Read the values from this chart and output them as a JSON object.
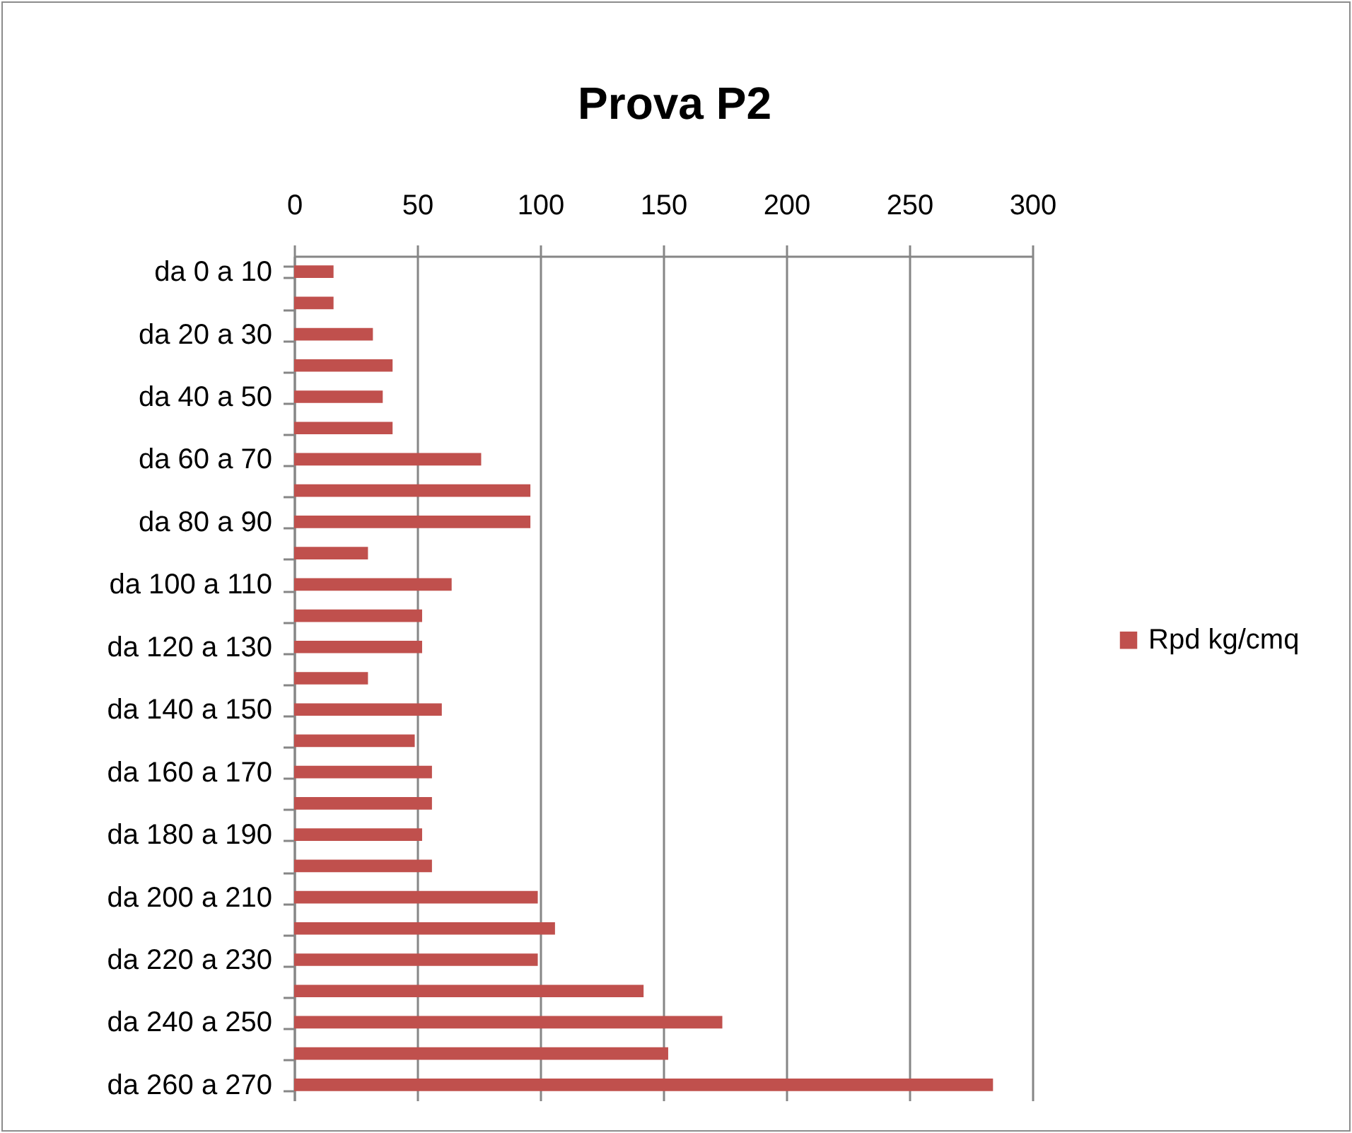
{
  "chart_data": {
    "type": "bar",
    "orientation": "horizontal",
    "title": "Prova P2",
    "categories": [
      "da 0 a 10",
      null,
      "da 20 a 30",
      null,
      "da 40 a 50",
      null,
      "da 60 a 70",
      null,
      "da 80 a 90",
      null,
      "da 100 a 110",
      null,
      "da 120 a 130",
      null,
      "da 140 a 150",
      null,
      "da 160 a 170",
      null,
      "da 180 a 190",
      null,
      "da 200 a 210",
      null,
      "da 220 a 230",
      null,
      "da 240 a 250",
      null,
      "da 260 a 270"
    ],
    "series": [
      {
        "name": "Rpd kg/cmq",
        "color": "#c0504d",
        "values": [
          16,
          16,
          32,
          40,
          36,
          40,
          76,
          96,
          96,
          30,
          64,
          52,
          52,
          30,
          60,
          49,
          56,
          56,
          52,
          56,
          99,
          106,
          99,
          142,
          174,
          152,
          284
        ]
      }
    ],
    "xlim": [
      0,
      300
    ],
    "xticks": [
      0,
      50,
      100,
      150,
      200,
      250,
      300
    ],
    "grid": "x",
    "legend": "right"
  }
}
